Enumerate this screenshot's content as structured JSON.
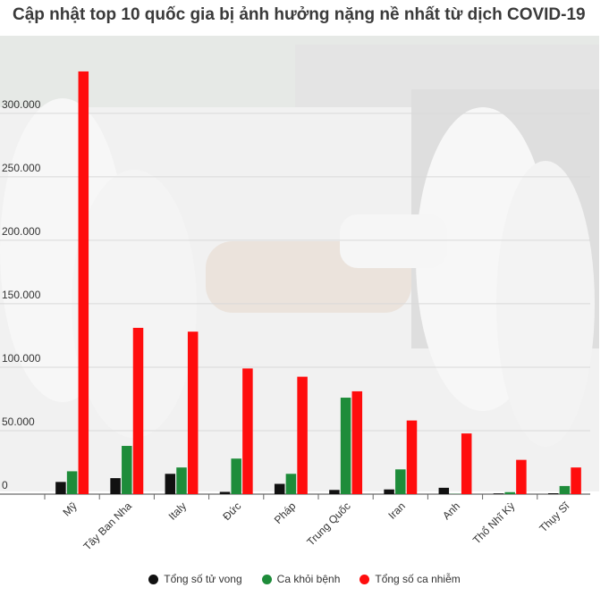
{
  "chart_data": {
    "type": "bar",
    "title": "Cập nhật top 10 quốc gia bị ảnh hưởng nặng nề nhất từ dịch COVID-19",
    "categories": [
      "Mỹ",
      "Tây Ban Nha",
      "Italy",
      "Đức",
      "Pháp",
      "Trung Quốc",
      "Iran",
      "Anh",
      "Thổ Nhĩ Kỳ",
      "Thụy Sĩ"
    ],
    "series": [
      {
        "name": "Tổng số tử vong",
        "color": "#111111",
        "values": [
          9600,
          12600,
          16000,
          1800,
          8100,
          3300,
          3700,
          5000,
          600,
          700
        ]
      },
      {
        "name": "Ca khỏi bệnh",
        "color": "#1e8c3a",
        "values": [
          18000,
          38000,
          21000,
          28000,
          16000,
          76000,
          19500,
          200,
          1600,
          6400
        ]
      },
      {
        "name": "Tổng số ca nhiễm",
        "color": "#ff0d0d",
        "values": [
          333000,
          131000,
          128000,
          99000,
          92500,
          81000,
          58000,
          47800,
          27000,
          21000
        ]
      }
    ],
    "yticks": [
      "0",
      "50.000",
      "100.000",
      "150.000",
      "200.000",
      "250.000",
      "300.000"
    ],
    "ytick_values": [
      0,
      50000,
      100000,
      150000,
      200000,
      250000,
      300000
    ],
    "ylim": [
      0,
      340000
    ],
    "grid": true,
    "legend_position": "bottom"
  }
}
